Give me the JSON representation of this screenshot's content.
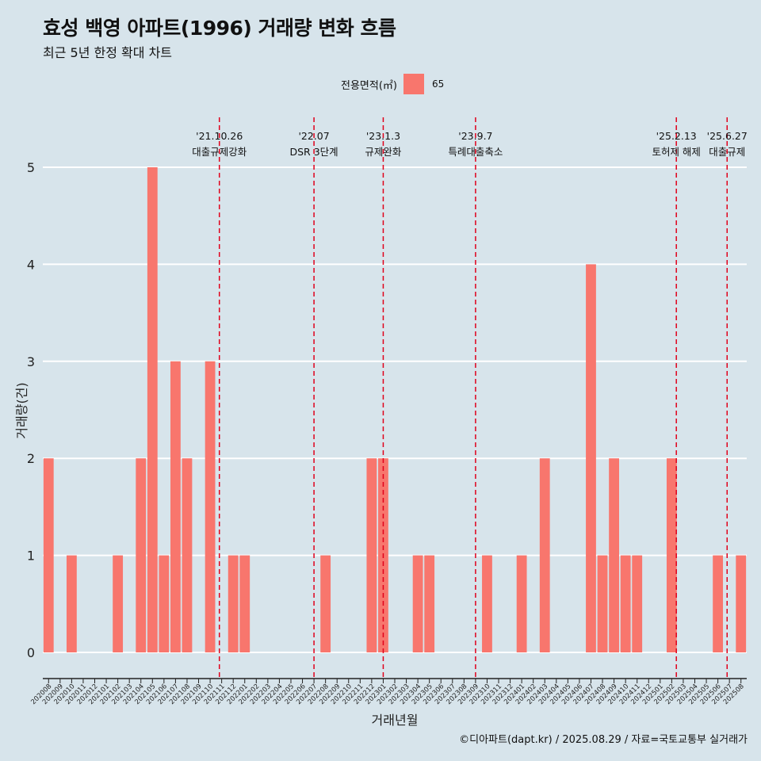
{
  "title": "효성 백영 아파트(1996) 거래량 변화 흐름",
  "subtitle": "최근 5년 한정 확대 차트",
  "legend": {
    "title": "전용면적(㎡)",
    "items": [
      {
        "label": "65",
        "color": "#f8766d"
      }
    ]
  },
  "caption": "©디아파트(dapt.kr) / 2025.08.29 / 자료=국토교통부 실거래가",
  "colors": {
    "background": "#d7e4eb",
    "bar": "#f8766d",
    "grid": "#ffffff",
    "event_line": "#e0001b"
  },
  "chart_data": {
    "type": "bar",
    "xlabel": "거래년월",
    "ylabel": "거래량(건)",
    "ylim": [
      0,
      5
    ],
    "yticks": [
      0,
      1,
      2,
      3,
      4,
      5
    ],
    "grid": true,
    "legend_position": "top",
    "categories": [
      "202008",
      "202009",
      "202010",
      "202011",
      "202012",
      "202101",
      "202102",
      "202103",
      "202104",
      "202105",
      "202106",
      "202107",
      "202108",
      "202109",
      "202110",
      "202111",
      "202112",
      "202201",
      "202202",
      "202203",
      "202204",
      "202205",
      "202206",
      "202207",
      "202208",
      "202209",
      "202210",
      "202211",
      "202212",
      "202301",
      "202302",
      "202303",
      "202304",
      "202305",
      "202306",
      "202307",
      "202308",
      "202309",
      "202310",
      "202311",
      "202312",
      "202401",
      "202402",
      "202403",
      "202404",
      "202405",
      "202406",
      "202407",
      "202408",
      "202409",
      "202410",
      "202411",
      "202412",
      "202501",
      "202502",
      "202503",
      "202504",
      "202505",
      "202506",
      "202507",
      "202508"
    ],
    "series": [
      {
        "name": "65",
        "values": [
          2,
          0,
          1,
          0,
          0,
          0,
          1,
          0,
          2,
          5,
          1,
          3,
          2,
          0,
          3,
          0,
          1,
          1,
          0,
          0,
          0,
          0,
          0,
          0,
          1,
          0,
          0,
          0,
          2,
          2,
          0,
          0,
          1,
          1,
          0,
          0,
          0,
          0,
          1,
          0,
          0,
          1,
          0,
          2,
          0,
          0,
          0,
          4,
          1,
          2,
          1,
          1,
          0,
          0,
          2,
          0,
          0,
          0,
          1,
          0,
          1
        ]
      }
    ],
    "events": [
      {
        "date": "'21.10.26",
        "label": "대출규제강화",
        "month_index": 14.8
      },
      {
        "date": "'22.07",
        "label": "DSR 3단계",
        "month_index": 23.0
      },
      {
        "date": "'23.1.3",
        "label": "규제완화",
        "month_index": 29.0
      },
      {
        "date": "'23.9.7",
        "label": "특례대출축소",
        "month_index": 37.0
      },
      {
        "date": "'25.2.13",
        "label": "토허제 해제",
        "month_index": 54.4
      },
      {
        "date": "'25.6.27",
        "label": "대출규제",
        "month_index": 58.8
      }
    ]
  }
}
